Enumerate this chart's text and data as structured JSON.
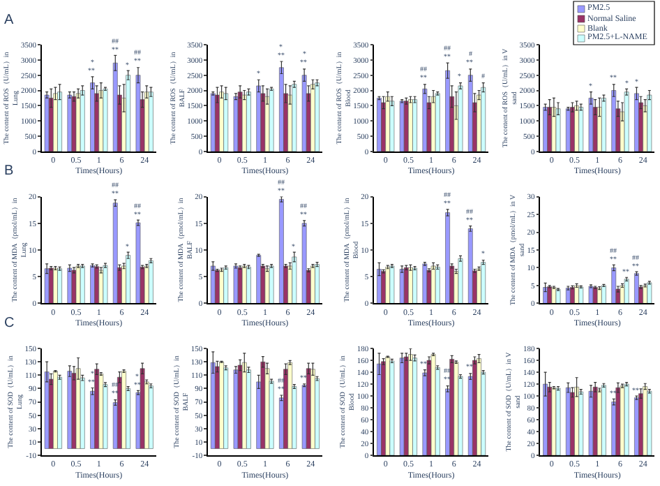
{
  "chart_data": [
    {
      "type": "bar",
      "title": "A",
      "ylabel": "The content of ROS（U/mL）in Lung",
      "xlabel": "Times(Hours)",
      "categories": [
        "0",
        "0.5",
        "1",
        "6",
        "24"
      ],
      "ylim": [
        0,
        3500
      ],
      "yticks": [
        0,
        500,
        1000,
        1500,
        2000,
        2500,
        3000,
        3500
      ],
      "legend": false,
      "series": [
        {
          "color": "#9999ff",
          "values": [
            1850,
            1850,
            2250,
            2900,
            2500
          ],
          "errors": [
            100,
            100,
            200,
            250,
            250
          ]
        },
        {
          "color": "#993366",
          "values": [
            1750,
            1800,
            1900,
            1850,
            1700
          ],
          "errors": [
            300,
            150,
            250,
            300,
            250
          ]
        },
        {
          "color": "#ffffcc",
          "values": [
            1900,
            1900,
            2000,
            1750,
            1950
          ],
          "errors": [
            200,
            150,
            250,
            450,
            200
          ]
        },
        {
          "color": "#ccffff",
          "values": [
            1950,
            2000,
            2050,
            2500,
            1950
          ],
          "errors": [
            250,
            150,
            50,
            150,
            150
          ]
        }
      ],
      "annotations": [
        {
          "text": "**",
          "x": "1",
          "y": 2450
        },
        {
          "text": "*",
          "x": "1",
          "y": 2450
        },
        {
          "text": "**",
          "x": "6",
          "y": 3150
        },
        {
          "text": "##",
          "x": "6",
          "y": 3150
        },
        {
          "text": "**",
          "x": "24",
          "y": 2750
        },
        {
          "text": "##",
          "x": "24",
          "y": 2750
        },
        {
          "text": "*",
          "x": "6",
          "y": 2650
        }
      ]
    },
    {
      "type": "bar",
      "ylabel": "The content of ROS（U/mL）in BALF",
      "xlabel": "Times(Hours)",
      "categories": [
        "0",
        "0.5",
        "1",
        "6",
        "24"
      ],
      "ylim": [
        0,
        3500
      ],
      "yticks": [
        0,
        500,
        1000,
        1500,
        2000,
        2500,
        3000,
        3500
      ],
      "legend": false,
      "series": [
        {
          "color": "#9999ff",
          "values": [
            1900,
            1800,
            2150,
            2750,
            2500
          ],
          "errors": [
            50,
            100,
            200,
            200,
            200
          ]
        },
        {
          "color": "#993366",
          "values": [
            1850,
            1950,
            1900,
            1900,
            1900
          ],
          "errors": [
            250,
            200,
            250,
            300,
            250
          ]
        },
        {
          "color": "#ffffcc",
          "values": [
            1950,
            1850,
            1800,
            1850,
            2200
          ],
          "errors": [
            200,
            150,
            250,
            300,
            150
          ]
        },
        {
          "color": "#ccffff",
          "values": [
            1900,
            1950,
            2050,
            2200,
            2250
          ],
          "errors": [
            200,
            100,
            50,
            100,
            100
          ]
        }
      ],
      "annotations": [
        {
          "text": "*",
          "x": "1",
          "y": 2350
        },
        {
          "text": "**",
          "x": "6",
          "y": 2950
        },
        {
          "text": "*",
          "x": "6",
          "y": 2950
        },
        {
          "text": "**",
          "x": "24",
          "y": 2700
        },
        {
          "text": "*",
          "x": "24",
          "y": 2700
        }
      ]
    },
    {
      "type": "bar",
      "ylabel": "The content of ROS（U/mL）in Blood",
      "xlabel": "Times(Hours)",
      "categories": [
        "0",
        "0.5",
        "1",
        "6",
        "24"
      ],
      "ylim": [
        0,
        3500
      ],
      "yticks": [
        0,
        500,
        1000,
        1500,
        2000,
        2500,
        3000,
        3500
      ],
      "legend": false,
      "series": [
        {
          "color": "#9999ff",
          "values": [
            1750,
            1650,
            2050,
            2650,
            2500
          ],
          "errors": [
            50,
            50,
            150,
            250,
            200
          ]
        },
        {
          "color": "#993366",
          "values": [
            1600,
            1650,
            1600,
            1800,
            1600
          ],
          "errors": [
            200,
            100,
            200,
            350,
            300
          ]
        },
        {
          "color": "#ffffcc",
          "values": [
            1800,
            1700,
            1800,
            1500,
            1850
          ],
          "errors": [
            150,
            100,
            200,
            450,
            150
          ]
        },
        {
          "color": "#ccffff",
          "values": [
            1650,
            1700,
            1900,
            2150,
            2100
          ],
          "errors": [
            150,
            100,
            50,
            100,
            150
          ]
        }
      ],
      "annotations": [
        {
          "text": "**",
          "x": "1",
          "y": 2200
        },
        {
          "text": "##",
          "x": "1",
          "y": 2200
        },
        {
          "text": "**",
          "x": "6",
          "y": 2900
        },
        {
          "text": "##",
          "x": "6",
          "y": 2900
        },
        {
          "text": "**",
          "x": "24",
          "y": 2700
        },
        {
          "text": "#",
          "x": "24",
          "y": 2700
        },
        {
          "text": "*",
          "x": "6",
          "y": 2250
        },
        {
          "text": "#",
          "x": "24",
          "y": 2250
        }
      ]
    },
    {
      "type": "bar",
      "ylabel": "The content of ROS（U/mL）in V sand",
      "xlabel": "Times(Hours)",
      "categories": [
        "0",
        "0.5",
        "1",
        "6",
        "24"
      ],
      "ylim": [
        0,
        3500
      ],
      "yticks": [
        0,
        500,
        1000,
        1500,
        2000,
        2500,
        3000,
        3500
      ],
      "legend": "top right",
      "series": [
        {
          "name": "PM2.5",
          "color": "#9999ff",
          "values": [
            1450,
            1400,
            1750,
            2000,
            1900
          ],
          "errors": [
            100,
            50,
            200,
            200,
            200
          ]
        },
        {
          "name": "Normal Saline",
          "color": "#993366",
          "values": [
            1450,
            1450,
            1450,
            1400,
            1600
          ],
          "errors": [
            250,
            150,
            250,
            250,
            200
          ]
        },
        {
          "name": "Blank",
          "color": "#ffffcc",
          "values": [
            1450,
            1500,
            1450,
            1300,
            1500
          ],
          "errors": [
            300,
            150,
            300,
            300,
            200
          ]
        },
        {
          "name": "PM2.5+L-NAME",
          "color": "#ccffff",
          "values": [
            1400,
            1450,
            1750,
            1950,
            1850
          ],
          "errors": [
            200,
            100,
            100,
            100,
            150
          ]
        }
      ],
      "annotations": [
        {
          "text": "*",
          "x": "1",
          "y": 1950
        },
        {
          "text": "**",
          "x": "6",
          "y": 2200
        },
        {
          "text": "*",
          "x": "24",
          "y": 2100
        },
        {
          "text": "*",
          "x": "6",
          "y": 2050
        }
      ]
    },
    {
      "type": "bar",
      "title": "B",
      "ylabel": "The content of MDA（pmol/mL）in Lung",
      "xlabel": "Times(Hours)",
      "categories": [
        "0",
        "0.5",
        "1",
        "6",
        "24"
      ],
      "ylim": [
        0,
        20
      ],
      "yticks": [
        0,
        5,
        10,
        15,
        20
      ],
      "legend": false,
      "series": [
        {
          "color": "#9999ff",
          "values": [
            6.5,
            6.6,
            7.1,
            18.8,
            15.1
          ],
          "errors": [
            0.9,
            0.6,
            0.3,
            0.6,
            0.5
          ]
        },
        {
          "color": "#993366",
          "values": [
            6.6,
            6.2,
            6.9,
            6.7,
            6.8
          ],
          "errors": [
            0.3,
            0.5,
            0.3,
            0.5,
            0.3
          ]
        },
        {
          "color": "#ffffcc",
          "values": [
            6.6,
            7.0,
            6.2,
            7.0,
            7.0
          ],
          "errors": [
            0.3,
            0.3,
            0.5,
            0.5,
            0.3
          ]
        },
        {
          "color": "#ccffff",
          "values": [
            6.5,
            7.0,
            7.1,
            9.0,
            8.0
          ],
          "errors": [
            0.3,
            0.3,
            0.4,
            0.6,
            0.4
          ]
        }
      ],
      "annotations": [
        {
          "text": "**",
          "x": "6",
          "y": 19.4
        },
        {
          "text": "##",
          "x": "6",
          "y": 19.4
        },
        {
          "text": "**",
          "x": "24",
          "y": 15.6
        },
        {
          "text": "##",
          "x": "24",
          "y": 15.6
        },
        {
          "text": "*",
          "x": "6",
          "y": 9.6
        }
      ]
    },
    {
      "type": "bar",
      "ylabel": "The content of MDA（pmol/mL）in BALF",
      "xlabel": "Times(Hours)",
      "categories": [
        "0",
        "0.5",
        "1",
        "6",
        "24"
      ],
      "ylim": [
        0,
        20
      ],
      "yticks": [
        0,
        5,
        10,
        15,
        20
      ],
      "legend": false,
      "series": [
        {
          "color": "#9999ff",
          "values": [
            7.0,
            7.0,
            9.0,
            19.5,
            15.0
          ],
          "errors": [
            0.8,
            0.4,
            0.2,
            0.5,
            0.5
          ]
        },
        {
          "color": "#993366",
          "values": [
            6.2,
            6.7,
            7.0,
            7.0,
            6.2
          ],
          "errors": [
            0.2,
            0.3,
            0.3,
            0.3,
            0.3
          ]
        },
        {
          "color": "#ffffcc",
          "values": [
            6.3,
            7.0,
            6.5,
            7.0,
            7.0
          ],
          "errors": [
            0.3,
            0.3,
            0.5,
            0.6,
            0.3
          ]
        },
        {
          "color": "#ccffff",
          "values": [
            6.7,
            6.8,
            7.0,
            8.7,
            7.3
          ],
          "errors": [
            0.3,
            0.3,
            0.3,
            0.9,
            0.4
          ]
        }
      ],
      "annotations": [
        {
          "text": "**",
          "x": "6",
          "y": 20
        },
        {
          "text": "##",
          "x": "6",
          "y": 20
        },
        {
          "text": "**",
          "x": "24",
          "y": 15.5
        },
        {
          "text": "##",
          "x": "24",
          "y": 15.5
        },
        {
          "text": "*",
          "x": "6",
          "y": 9.6
        }
      ]
    },
    {
      "type": "bar",
      "ylabel": "The content of MDA（pmol/mL）in Blood",
      "xlabel": "Times(Hours)",
      "categories": [
        "0",
        "0.5",
        "1",
        "6",
        "24"
      ],
      "ylim": [
        0,
        20
      ],
      "yticks": [
        0,
        5,
        10,
        15,
        20
      ],
      "legend": false,
      "series": [
        {
          "color": "#9999ff",
          "values": [
            6.4,
            6.4,
            7.4,
            17.0,
            14.0
          ],
          "errors": [
            1.2,
            0.6,
            0.3,
            0.6,
            0.5
          ]
        },
        {
          "color": "#993366",
          "values": [
            6.0,
            6.7,
            6.2,
            7.0,
            6.1
          ],
          "errors": [
            0.3,
            0.4,
            0.3,
            0.4,
            0.3
          ]
        },
        {
          "color": "#ffffcc",
          "values": [
            6.8,
            6.7,
            7.0,
            6.0,
            6.5
          ],
          "errors": [
            0.3,
            0.5,
            0.6,
            0.4,
            0.3
          ]
        },
        {
          "color": "#ccffff",
          "values": [
            7.0,
            6.6,
            6.8,
            8.4,
            7.7
          ],
          "errors": [
            0.3,
            0.3,
            0.4,
            0.5,
            0.4
          ]
        }
      ],
      "annotations": [
        {
          "text": "**",
          "x": "6",
          "y": 17.6
        },
        {
          "text": "##",
          "x": "6",
          "y": 17.6
        },
        {
          "text": "**",
          "x": "24",
          "y": 14.5
        },
        {
          "text": "##",
          "x": "24",
          "y": 14.5
        },
        {
          "text": "*",
          "x": "24",
          "y": 8.1
        }
      ]
    },
    {
      "type": "bar",
      "ylabel": "The content of MDA（pmol/mL）in V sand",
      "xlabel": "Times(Hours)",
      "categories": [
        "0",
        "0.5",
        "1",
        "6",
        "24"
      ],
      "ylim": [
        0,
        30
      ],
      "yticks": [
        0,
        5,
        10,
        15,
        20,
        25,
        30
      ],
      "legend": false,
      "series": [
        {
          "color": "#9999ff",
          "values": [
            4.5,
            4.3,
            4.8,
            10.0,
            8.4
          ],
          "errors": [
            1.2,
            0.5,
            0.4,
            0.8,
            0.5
          ]
        },
        {
          "color": "#993366",
          "values": [
            4.7,
            4.5,
            4.5,
            4.0,
            4.6
          ],
          "errors": [
            0.3,
            0.4,
            0.3,
            0.8,
            0.4
          ]
        },
        {
          "color": "#ffffcc",
          "values": [
            4.5,
            5.0,
            4.3,
            5.0,
            5.0
          ],
          "errors": [
            0.3,
            0.5,
            0.4,
            0.5,
            0.4
          ]
        },
        {
          "color": "#ccffff",
          "values": [
            3.9,
            4.6,
            5.0,
            6.8,
            5.8
          ],
          "errors": [
            0.3,
            0.3,
            0.3,
            0.5,
            0.4
          ]
        }
      ],
      "annotations": [
        {
          "text": "**",
          "x": "6",
          "y": 10.8
        },
        {
          "text": "##",
          "x": "6",
          "y": 10.8
        },
        {
          "text": "**",
          "x": "24",
          "y": 8.9
        },
        {
          "text": "##",
          "x": "24",
          "y": 8.9
        },
        {
          "text": "**",
          "x": "6",
          "y": 7.3
        }
      ]
    },
    {
      "type": "bar",
      "title": "C",
      "ylabel": "The content of SOD（U/mL）in Lung",
      "xlabel": "Times(Hours)",
      "categories": [
        "0",
        "0.5",
        "1",
        "6",
        "24"
      ],
      "ylim": [
        -10,
        150
      ],
      "yticks": [
        -10,
        10,
        30,
        50,
        70,
        90,
        110,
        130,
        150
      ],
      "legend": false,
      "series": [
        {
          "color": "#9999ff",
          "values": [
            115,
            116,
            86,
            69,
            84
          ],
          "errors": [
            15,
            8,
            5,
            4,
            3
          ]
        },
        {
          "color": "#993366",
          "values": [
            104,
            113,
            119,
            107,
            120
          ],
          "errors": [
            8,
            10,
            8,
            8,
            8
          ]
        },
        {
          "color": "#ffffcc",
          "values": [
            116,
            120,
            112,
            116,
            100
          ],
          "errors": [
            1,
            16,
            2,
            2,
            3
          ]
        },
        {
          "color": "#ccffff",
          "values": [
            107,
            106,
            96,
            90,
            94
          ],
          "errors": [
            3,
            4,
            3,
            3,
            3
          ]
        }
      ],
      "annotations": [
        {
          "text": "**",
          "x": "1",
          "y": 91
        },
        {
          "text": "*",
          "x": "1",
          "y": 91
        },
        {
          "text": "**",
          "x": "6",
          "y": 73
        },
        {
          "text": "##",
          "x": "6",
          "y": 73
        },
        {
          "text": "**",
          "x": "24",
          "y": 87
        },
        {
          "text": "*",
          "x": "24",
          "y": 87
        }
      ]
    },
    {
      "type": "bar",
      "ylabel": "The content of SOD（U/mL）in BALF",
      "xlabel": "Times(Hours)",
      "categories": [
        "0",
        "0.5",
        "1",
        "6",
        "24"
      ],
      "ylim": [
        -10,
        150
      ],
      "yticks": [
        -10,
        10,
        30,
        50,
        70,
        90,
        110,
        130,
        150
      ],
      "legend": false,
      "series": [
        {
          "color": "#9999ff",
          "values": [
            129,
            118,
            100,
            76,
            95
          ],
          "errors": [
            16,
            5,
            10,
            4,
            2
          ]
        },
        {
          "color": "#993366",
          "values": [
            123,
            125,
            130,
            119,
            120
          ],
          "errors": [
            8,
            8,
            8,
            8,
            8
          ]
        },
        {
          "color": "#ffffcc",
          "values": [
            130,
            129,
            120,
            129,
            119
          ],
          "errors": [
            1,
            14,
            8,
            3,
            9
          ]
        },
        {
          "color": "#ccffff",
          "values": [
            121,
            118,
            101,
            93,
            105
          ],
          "errors": [
            3,
            4,
            3,
            3,
            3
          ]
        }
      ],
      "annotations": [
        {
          "text": "**",
          "x": "6",
          "y": 80
        },
        {
          "text": "##",
          "x": "6",
          "y": 80
        },
        {
          "text": "**",
          "x": "24",
          "y": 97
        }
      ]
    },
    {
      "type": "bar",
      "ylabel": "The content of SOD（U/mL）in Blood",
      "xlabel": "Times(Hours)",
      "categories": [
        "0",
        "0.5",
        "1",
        "6",
        "24"
      ],
      "ylim": [
        0,
        180
      ],
      "yticks": [
        0,
        20,
        40,
        60,
        80,
        100,
        120,
        140,
        160,
        180
      ],
      "legend": false,
      "series": [
        {
          "color": "#9999ff",
          "values": [
            154,
            164,
            139,
            112,
            133
          ],
          "errors": [
            18,
            8,
            5,
            5,
            5
          ]
        },
        {
          "color": "#993366",
          "values": [
            158,
            166,
            160,
            162,
            160
          ],
          "errors": [
            5,
            6,
            6,
            6,
            6
          ]
        },
        {
          "color": "#ffffcc",
          "values": [
            166,
            170,
            170,
            157,
            163
          ],
          "errors": [
            1,
            10,
            2,
            2,
            7
          ]
        },
        {
          "color": "#ccffff",
          "values": [
            159,
            164,
            148,
            133,
            140
          ],
          "errors": [
            3,
            5,
            3,
            3,
            3
          ]
        }
      ],
      "annotations": [
        {
          "text": "**",
          "x": "1",
          "y": 144
        },
        {
          "text": "**",
          "x": "6",
          "y": 117
        },
        {
          "text": "##",
          "x": "6",
          "y": 117
        },
        {
          "text": "**",
          "x": "24",
          "y": 138
        }
      ]
    },
    {
      "type": "bar",
      "ylabel": "The content of SOD（U/mL）in V sand",
      "xlabel": "Times(Hours)",
      "categories": [
        "0",
        "0.5",
        "1",
        "6",
        "24"
      ],
      "ylim": [
        0,
        180
      ],
      "yticks": [
        0,
        20,
        40,
        60,
        80,
        100,
        120,
        140,
        160,
        180
      ],
      "legend": false,
      "series": [
        {
          "color": "#9999ff",
          "values": [
            120,
            114,
            108,
            90,
            97
          ],
          "errors": [
            20,
            8,
            10,
            5,
            3
          ]
        },
        {
          "color": "#993366",
          "values": [
            115,
            106,
            115,
            114,
            104
          ],
          "errors": [
            8,
            8,
            8,
            8,
            8
          ]
        },
        {
          "color": "#ffffcc",
          "values": [
            114,
            115,
            110,
            117,
            116
          ],
          "errors": [
            2,
            16,
            3,
            3,
            5
          ]
        },
        {
          "color": "#ccffff",
          "values": [
            113,
            107,
            118,
            120,
            108
          ],
          "errors": [
            3,
            4,
            3,
            3,
            3
          ]
        }
      ],
      "annotations": [
        {
          "text": "**",
          "x": "6",
          "y": 95
        },
        {
          "text": "**",
          "x": "24",
          "y": 100
        }
      ]
    }
  ]
}
